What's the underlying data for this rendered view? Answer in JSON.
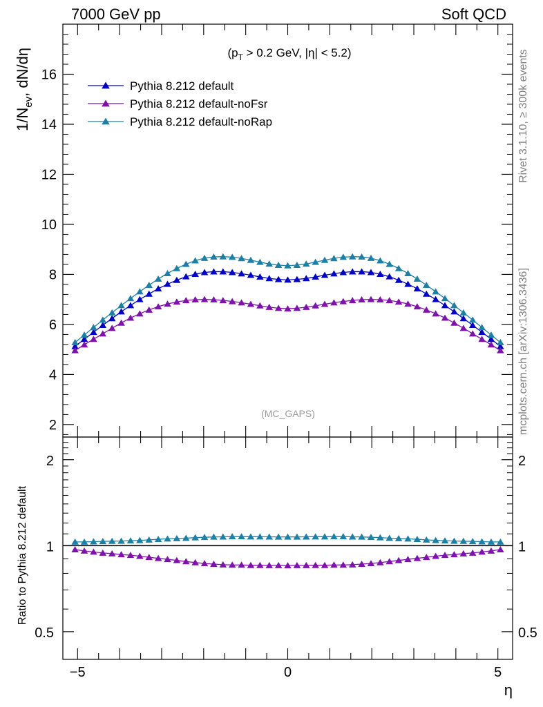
{
  "header": {
    "left": "7000 GeV pp",
    "right": "Soft QCD"
  },
  "side_labels": {
    "rivet": "Rivet 3.1.10, ≥ 300k events",
    "mcplots": "mcplots.cern.ch [arXiv:1306.3436]"
  },
  "watermark": "(MC_GAPS)",
  "cut_label": {
    "open": "(p",
    "sub": "T",
    "rest": " > 0.2 GeV, |η| < 5.2)"
  },
  "chart_data": [
    {
      "type": "scatter",
      "ylabel_main": "1/N",
      "ylabel_sub": "ev",
      "ylabel_tail": ", dN/dη",
      "xlim": [
        -5.35,
        5.35
      ],
      "ylim": [
        1.5,
        18.0
      ],
      "yticks": [
        2,
        4,
        6,
        8,
        10,
        12,
        14,
        16
      ],
      "ytick_labels": [
        "2",
        "4",
        "6",
        "8",
        "10",
        "12",
        "14",
        "16"
      ],
      "series": [
        {
          "name": "Pythia 8.212 default",
          "color": "#0000cc",
          "values": [
            5.12,
            5.41,
            5.69,
            5.97,
            6.24,
            6.51,
            6.76,
            7.0,
            7.22,
            7.43,
            7.61,
            7.77,
            7.91,
            8.01,
            8.08,
            8.11,
            8.11,
            8.08,
            8.03,
            7.97,
            7.9,
            7.84,
            7.8,
            7.78,
            7.8,
            7.84,
            7.9,
            7.97,
            8.03,
            8.08,
            8.11,
            8.11,
            8.08,
            8.01,
            7.91,
            7.77,
            7.61,
            7.43,
            7.22,
            7.0,
            6.76,
            6.51,
            6.24,
            5.97,
            5.69,
            5.41,
            5.12
          ]
        },
        {
          "name": "Pythia 8.212 default-noFsr",
          "color": "#8010b0",
          "values": [
            4.96,
            5.19,
            5.41,
            5.63,
            5.85,
            6.06,
            6.26,
            6.43,
            6.58,
            6.71,
            6.82,
            6.9,
            6.96,
            6.99,
            7.0,
            6.99,
            6.96,
            6.92,
            6.87,
            6.81,
            6.75,
            6.69,
            6.65,
            6.63,
            6.65,
            6.69,
            6.75,
            6.81,
            6.87,
            6.92,
            6.96,
            6.99,
            7.0,
            6.99,
            6.96,
            6.9,
            6.82,
            6.71,
            6.58,
            6.43,
            6.26,
            6.06,
            5.85,
            5.63,
            5.41,
            5.19,
            4.96
          ]
        },
        {
          "name": "Pythia 8.212 default-noRap",
          "color": "#1a80a8",
          "values": [
            5.28,
            5.58,
            5.88,
            6.18,
            6.47,
            6.76,
            7.04,
            7.31,
            7.57,
            7.82,
            8.04,
            8.24,
            8.41,
            8.55,
            8.65,
            8.7,
            8.71,
            8.69,
            8.64,
            8.57,
            8.49,
            8.42,
            8.37,
            8.35,
            8.37,
            8.42,
            8.49,
            8.57,
            8.64,
            8.69,
            8.71,
            8.7,
            8.65,
            8.55,
            8.41,
            8.24,
            8.04,
            7.82,
            7.57,
            7.31,
            7.04,
            6.76,
            6.47,
            6.18,
            5.88,
            5.58,
            5.28
          ]
        }
      ],
      "x": [
        -5.06,
        -4.84,
        -4.62,
        -4.4,
        -4.18,
        -3.96,
        -3.74,
        -3.52,
        -3.3,
        -3.08,
        -2.86,
        -2.64,
        -2.42,
        -2.2,
        -1.98,
        -1.76,
        -1.54,
        -1.32,
        -1.1,
        -0.88,
        -0.66,
        -0.44,
        -0.22,
        0.0,
        0.22,
        0.44,
        0.66,
        0.88,
        1.1,
        1.32,
        1.54,
        1.76,
        1.98,
        2.2,
        2.42,
        2.64,
        2.86,
        3.08,
        3.3,
        3.52,
        3.74,
        3.96,
        4.18,
        4.4,
        4.62,
        4.84,
        5.06
      ],
      "legend_position": "top-left"
    },
    {
      "type": "scatter",
      "ylabel": "Ratio to Pythia 8.212 default",
      "xlabel": "η",
      "xlim": [
        -5.35,
        5.35
      ],
      "ylim": [
        0.4,
        2.4
      ],
      "log_y": true,
      "yticks": [
        0.5,
        1,
        2
      ],
      "ytick_labels": [
        "0.5",
        "1",
        "2"
      ],
      "xticks": [
        -5,
        0,
        5
      ],
      "xtick_labels": [
        "−5",
        "0",
        "5"
      ],
      "reference_line": 1,
      "series": [
        {
          "name": "Pythia 8.212 default-noFsr",
          "color": "#8010b0",
          "values": [
            0.969,
            0.959,
            0.951,
            0.943,
            0.938,
            0.931,
            0.926,
            0.919,
            0.911,
            0.903,
            0.896,
            0.888,
            0.88,
            0.873,
            0.866,
            0.862,
            0.858,
            0.856,
            0.856,
            0.854,
            0.854,
            0.853,
            0.853,
            0.852,
            0.853,
            0.853,
            0.854,
            0.854,
            0.856,
            0.856,
            0.858,
            0.862,
            0.866,
            0.873,
            0.88,
            0.888,
            0.896,
            0.903,
            0.911,
            0.919,
            0.926,
            0.931,
            0.938,
            0.943,
            0.951,
            0.959,
            0.969
          ]
        },
        {
          "name": "Pythia 8.212 default-noRap",
          "color": "#1a80a8",
          "values": [
            1.031,
            1.031,
            1.033,
            1.035,
            1.037,
            1.038,
            1.041,
            1.044,
            1.048,
            1.053,
            1.057,
            1.06,
            1.063,
            1.067,
            1.07,
            1.073,
            1.074,
            1.076,
            1.076,
            1.075,
            1.075,
            1.074,
            1.073,
            1.073,
            1.073,
            1.074,
            1.075,
            1.075,
            1.076,
            1.076,
            1.074,
            1.073,
            1.07,
            1.067,
            1.063,
            1.06,
            1.057,
            1.053,
            1.048,
            1.044,
            1.041,
            1.038,
            1.037,
            1.035,
            1.033,
            1.031,
            1.031
          ]
        }
      ]
    }
  ]
}
